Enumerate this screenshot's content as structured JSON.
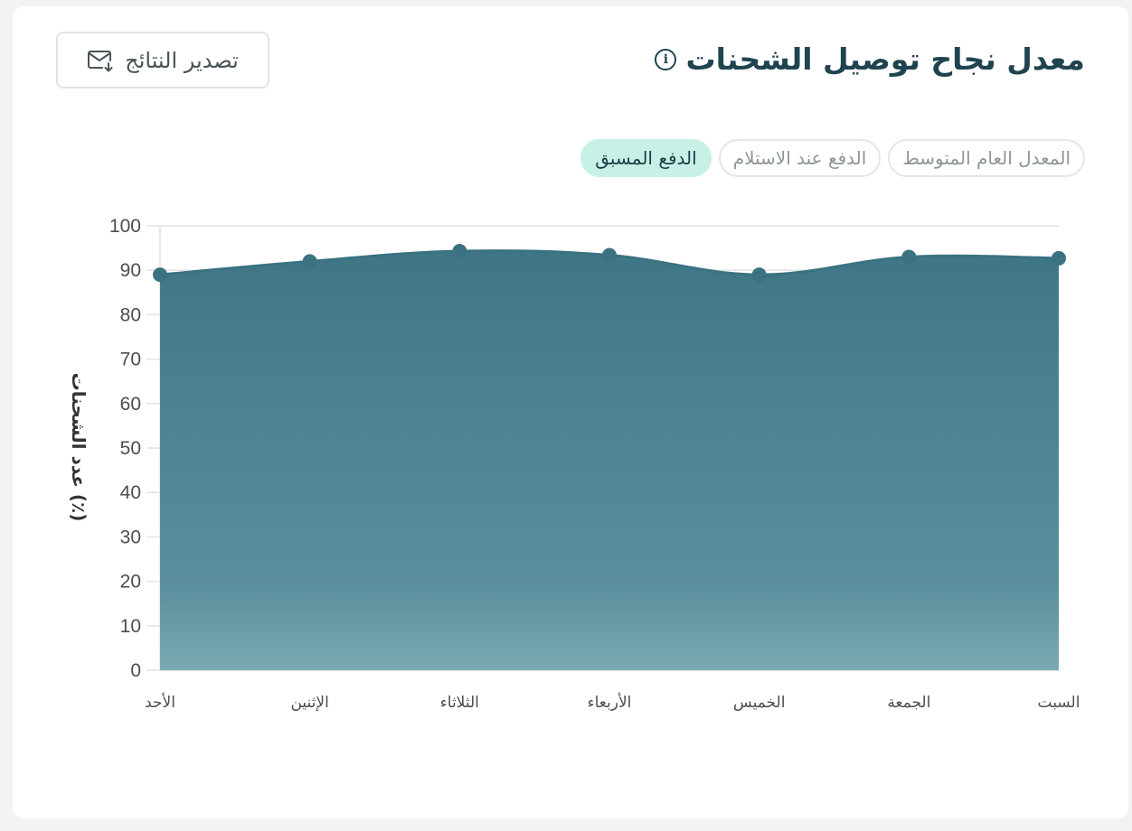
{
  "header": {
    "title": "معدل نجاح توصيل الشحنات",
    "info_icon": "info-icon"
  },
  "toolbar": {
    "export_label": "تصدير النتائج",
    "export_icon": "mail-export-icon"
  },
  "filters": [
    {
      "label": "المعدل العام المتوسط",
      "active": false
    },
    {
      "label": "الدفع عند الاستلام",
      "active": false
    },
    {
      "label": "الدفع المسبق",
      "active": true
    }
  ],
  "chart_data": {
    "type": "area",
    "title": "",
    "ylabel": "عدد الشحنات (٪)",
    "xlabel": "",
    "ylim": [
      0,
      100
    ],
    "yticks": [
      0,
      10,
      20,
      30,
      40,
      50,
      60,
      70,
      80,
      90,
      100
    ],
    "grid": true,
    "categories": [
      "الأحد",
      "الإثنين",
      "الثلاثاء",
      "الأربعاء",
      "الخميس",
      "الجمعة",
      "السبت"
    ],
    "values": [
      89,
      92,
      94.3,
      93.4,
      89,
      93,
      92.7
    ],
    "colors": {
      "fill_top": "#3f7686",
      "fill_bottom": "#7aa9b3",
      "line": "#3b7282",
      "point": "#3b7282"
    }
  }
}
